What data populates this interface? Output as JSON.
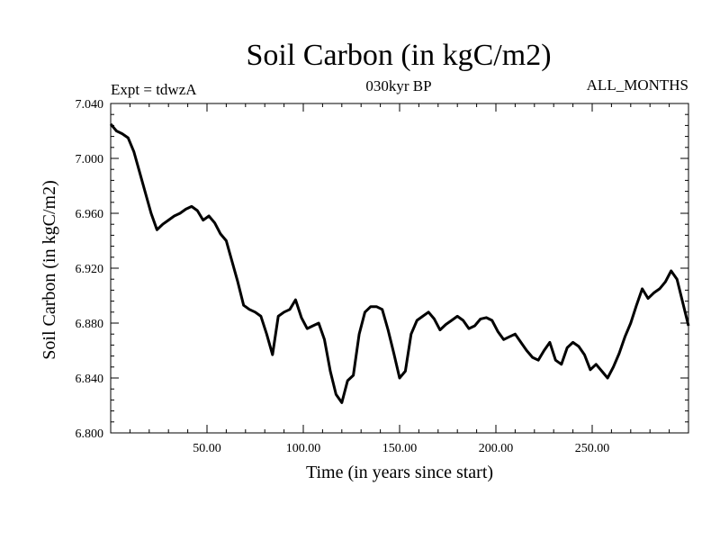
{
  "chart_data": {
    "type": "line",
    "title": "Soil Carbon (in kgC/m2)",
    "subtitle": "030kyr BP",
    "left_label": "Expt = tdwzA",
    "right_label": "ALL_MONTHS",
    "xlabel": "Time (in years since start)",
    "ylabel": "Soil Carbon (in kgC/m2)",
    "xlim": [
      0,
      300
    ],
    "ylim": [
      6.8,
      7.04
    ],
    "x_ticks": [
      50,
      100,
      150,
      200,
      250
    ],
    "x_tick_labels": [
      "50.00",
      "100.00",
      "150.00",
      "200.00",
      "250.00"
    ],
    "y_ticks": [
      6.8,
      6.84,
      6.88,
      6.92,
      6.96,
      7.0,
      7.04
    ],
    "y_tick_labels": [
      "6.800",
      "6.840",
      "6.880",
      "6.920",
      "6.960",
      "7.000",
      "7.040"
    ],
    "grid": false,
    "line_color": "#000000",
    "series": [
      {
        "x": [
          0,
          3,
          6,
          9,
          12,
          15,
          18,
          21,
          24,
          27,
          30,
          33,
          36,
          39,
          42,
          45,
          48,
          51,
          54,
          57,
          60,
          63,
          66,
          69,
          72,
          75,
          78,
          81,
          84,
          87,
          90,
          93,
          96,
          99,
          102,
          105,
          108,
          111,
          114,
          117,
          120,
          123,
          126,
          129,
          132,
          135,
          138,
          141,
          144,
          147,
          150,
          153,
          156,
          159,
          162,
          165,
          168,
          171,
          174,
          177,
          180,
          183,
          186,
          189,
          192,
          195,
          198,
          201,
          204,
          207,
          210,
          213,
          216,
          219,
          222,
          225,
          228,
          231,
          234,
          237,
          240,
          243,
          246,
          249,
          252,
          255,
          258,
          261,
          264,
          267,
          270,
          273,
          276,
          279,
          282,
          285,
          288,
          291,
          294,
          297,
          300
        ],
        "values": [
          7.025,
          7.02,
          7.018,
          7.015,
          7.005,
          6.99,
          6.975,
          6.96,
          6.948,
          6.952,
          6.955,
          6.958,
          6.96,
          6.963,
          6.965,
          6.962,
          6.955,
          6.958,
          6.953,
          6.945,
          6.94,
          6.925,
          6.91,
          6.893,
          6.89,
          6.888,
          6.885,
          6.872,
          6.857,
          6.885,
          6.888,
          6.89,
          6.897,
          6.884,
          6.876,
          6.878,
          6.88,
          6.868,
          6.845,
          6.828,
          6.822,
          6.838,
          6.842,
          6.872,
          6.888,
          6.892,
          6.892,
          6.89,
          6.875,
          6.858,
          6.84,
          6.845,
          6.872,
          6.882,
          6.885,
          6.888,
          6.883,
          6.875,
          6.879,
          6.882,
          6.885,
          6.882,
          6.876,
          6.878,
          6.883,
          6.884,
          6.882,
          6.874,
          6.868,
          6.87,
          6.872,
          6.866,
          6.86,
          6.855,
          6.853,
          6.86,
          6.866,
          6.853,
          6.85,
          6.862,
          6.866,
          6.863,
          6.857,
          6.846,
          6.85,
          6.845,
          6.84,
          6.848,
          6.858,
          6.87,
          6.88,
          6.893,
          6.905,
          6.898,
          6.902,
          6.905,
          6.91,
          6.918,
          6.912,
          6.895,
          6.878
        ]
      }
    ]
  }
}
